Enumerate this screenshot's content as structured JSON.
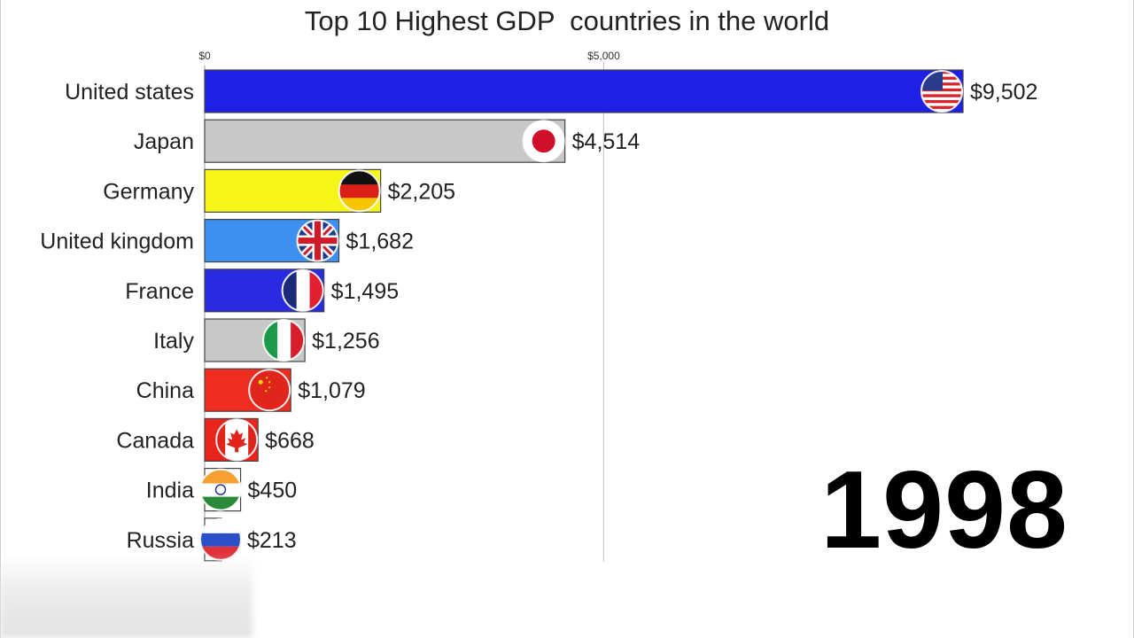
{
  "chart_data": {
    "type": "bar",
    "orientation": "horizontal",
    "title": "Top 10 Highest GDP  countries in the world",
    "year": "1998",
    "xlim": [
      0,
      9502
    ],
    "x_ticks": [
      {
        "value": 0,
        "label": "$0"
      },
      {
        "value": 5000,
        "label": "$5,000"
      }
    ],
    "grid": true,
    "categories": [
      "United states",
      "Japan",
      "Germany",
      "United kingdom",
      "France",
      "Italy",
      "China",
      "Canada",
      "India",
      "Russia"
    ],
    "values": [
      9502,
      4514,
      2205,
      1682,
      1495,
      1256,
      1079,
      668,
      450,
      213
    ],
    "value_labels": [
      "$9,502",
      "$4,514",
      "$2,205",
      "$1,682",
      "$1,495",
      "$1,256",
      "$1,079",
      "$668",
      "$450",
      "$213"
    ],
    "bar_colors": [
      "#1f1fe6",
      "#c8c8c8",
      "#f5f51a",
      "#3d8ff0",
      "#2a2ae0",
      "#c8c8c8",
      "#ee2c20",
      "#e8241c",
      "#ffffff",
      "#ffffff"
    ],
    "flag_icons": [
      "usa-flag-icon",
      "japan-flag-icon",
      "germany-flag-icon",
      "uk-flag-icon",
      "france-flag-icon",
      "italy-flag-icon",
      "china-flag-icon",
      "canada-flag-icon",
      "india-flag-icon",
      "russia-flag-icon"
    ]
  }
}
